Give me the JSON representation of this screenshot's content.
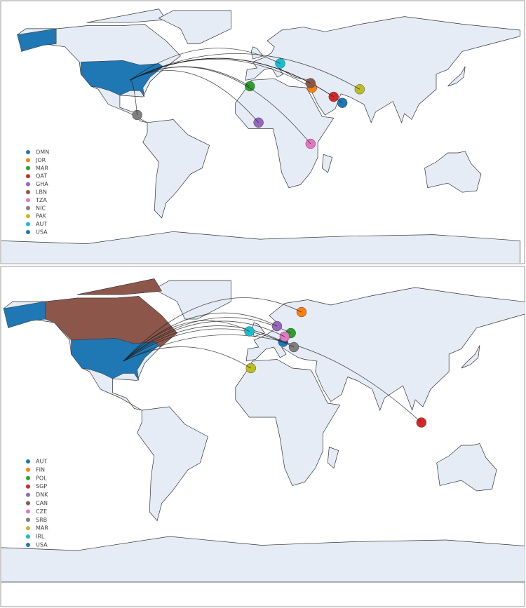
{
  "maps": [
    {
      "legend": [
        {
          "label": "OMN",
          "color": "#1f77b4"
        },
        {
          "label": "JOR",
          "color": "#ff7f0e"
        },
        {
          "label": "MAR",
          "color": "#2ca02c"
        },
        {
          "label": "QAT",
          "color": "#d62728"
        },
        {
          "label": "GHA",
          "color": "#9467bd"
        },
        {
          "label": "LBN",
          "color": "#8c564b"
        },
        {
          "label": "TZA",
          "color": "#e377c2"
        },
        {
          "label": "NIC",
          "color": "#7f7f7f"
        },
        {
          "label": "PAK",
          "color": "#bcbd22"
        },
        {
          "label": "AUT",
          "color": "#17becf"
        },
        {
          "label": "USA",
          "color": "#1f77b4"
        }
      ]
    },
    {
      "legend": [
        {
          "label": "AUT",
          "color": "#1f77b4"
        },
        {
          "label": "FIN",
          "color": "#ff7f0e"
        },
        {
          "label": "POL",
          "color": "#2ca02c"
        },
        {
          "label": "SGP",
          "color": "#d62728"
        },
        {
          "label": "DNK",
          "color": "#9467bd"
        },
        {
          "label": "CAN",
          "color": "#8c564b"
        },
        {
          "label": "CZE",
          "color": "#e377c2"
        },
        {
          "label": "SRB",
          "color": "#7f7f7f"
        },
        {
          "label": "MAR",
          "color": "#bcbd22"
        },
        {
          "label": "IRL",
          "color": "#17becf"
        },
        {
          "label": "USA",
          "color": "#1f77b4"
        }
      ]
    }
  ]
}
